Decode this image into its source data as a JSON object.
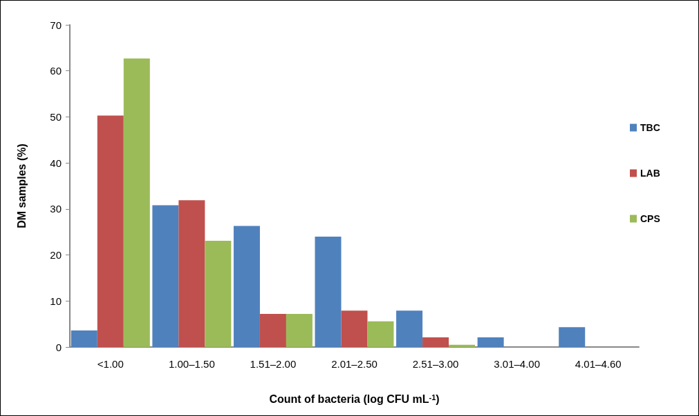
{
  "chart_data": {
    "type": "bar",
    "xlabel": "Count of bacteria (log CFU mL$^{-1}$)",
    "ylabel": "DM samples (%)",
    "categories": [
      "<1.00",
      "1.00–1.50",
      "1.51–2.00",
      "2.01–2.50",
      "2.51–3.00",
      "3.01–4.00",
      "4.01–4.60"
    ],
    "series": [
      {
        "name": "TBC",
        "color": "#4f81bd",
        "values": [
          3.6,
          30.8,
          26.3,
          24.0,
          7.9,
          2.1,
          4.3
        ]
      },
      {
        "name": "LAB",
        "color": "#c0504d",
        "values": [
          50.3,
          31.9,
          7.2,
          7.9,
          2.1,
          0,
          0
        ]
      },
      {
        "name": "CPS",
        "color": "#9bbb59",
        "values": [
          62.7,
          23.1,
          7.2,
          5.6,
          0.5,
          0,
          0
        ]
      }
    ],
    "ylim": [
      0,
      70
    ],
    "yticks": [
      0,
      10,
      20,
      30,
      40,
      50,
      60,
      70
    ],
    "grid": false,
    "legend": "right"
  }
}
